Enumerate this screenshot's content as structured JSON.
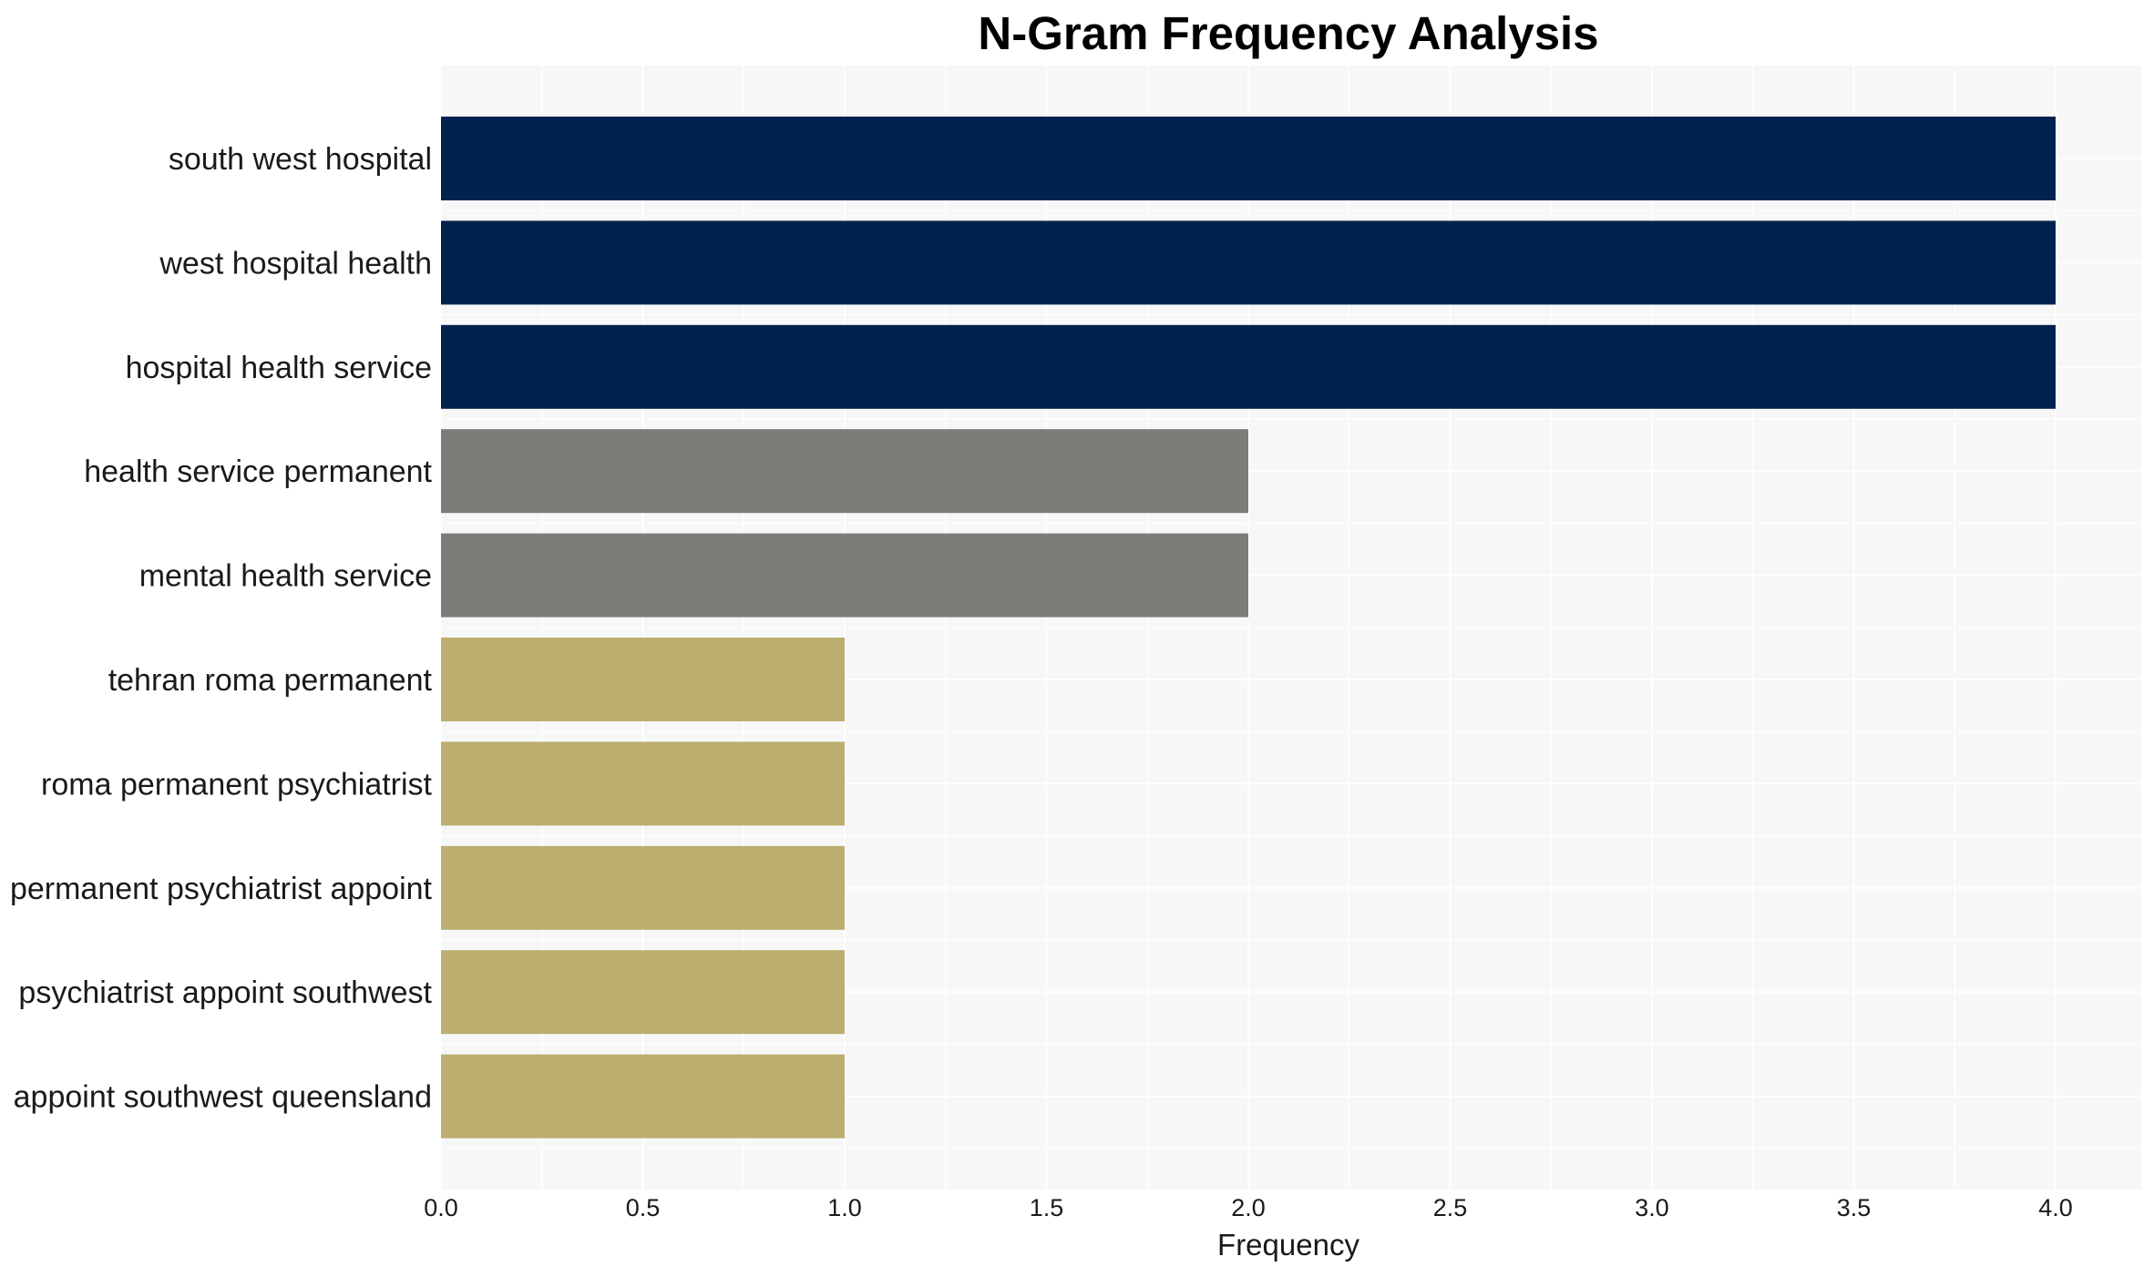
{
  "chart_data": {
    "type": "bar",
    "orientation": "horizontal",
    "title": "N-Gram Frequency Analysis",
    "xlabel": "Frequency",
    "ylabel": "",
    "xlim": [
      0,
      4.2
    ],
    "x_ticks": [
      "0.0",
      "0.5",
      "1.0",
      "1.5",
      "2.0",
      "2.5",
      "3.0",
      "3.5",
      "4.0"
    ],
    "categories": [
      "south west hospital",
      "west hospital health",
      "hospital health service",
      "health service permanent",
      "mental health service",
      "tehran roma permanent",
      "roma permanent psychiatrist",
      "permanent psychiatrist appoint",
      "psychiatrist appoint southwest",
      "appoint southwest queensland"
    ],
    "values": [
      4,
      4,
      4,
      2,
      2,
      1,
      1,
      1,
      1,
      1
    ],
    "bar_colors": [
      "#00224e",
      "#00224e",
      "#00224e",
      "#7d7c78",
      "#7d7c78",
      "#bbae6f",
      "#bbae6f",
      "#bbae6f",
      "#bbae6f",
      "#bbae6f"
    ],
    "grid": true,
    "legend": "none",
    "colors": {
      "plot_background": "#f7f7f7",
      "grid": "#ffffff",
      "high": "#00224e",
      "mid": "#7d7c78",
      "low": "#bbae6f"
    }
  }
}
